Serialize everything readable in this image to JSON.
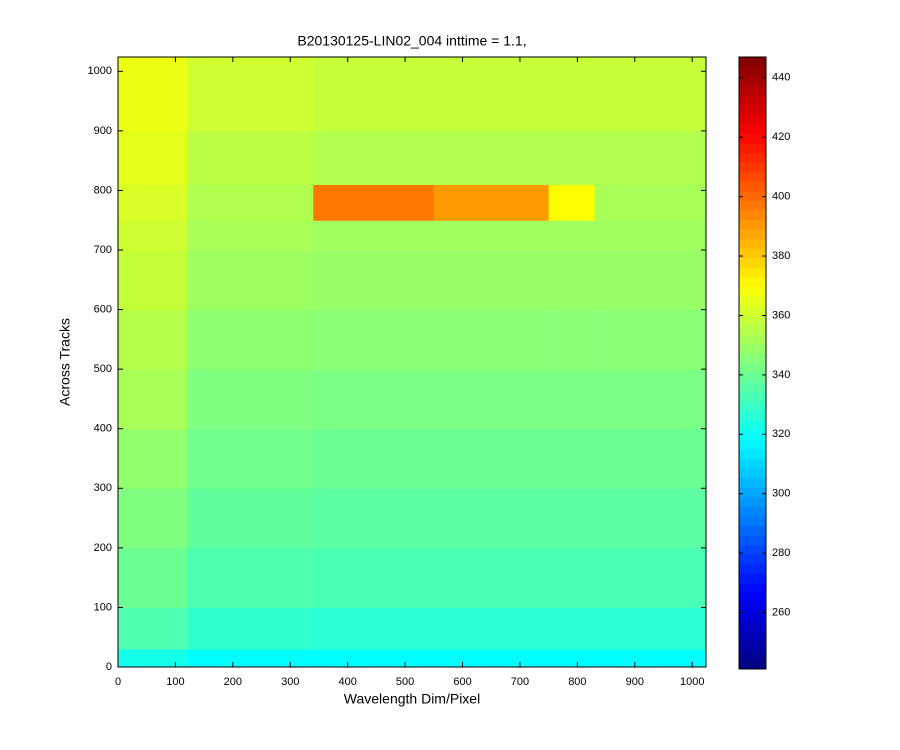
{
  "chart_data": {
    "type": "heatmap",
    "title": "B20130125-LIN02_004 inttime = 1.1,",
    "xlabel": "Wavelength Dim/Pixel",
    "ylabel": "Across Tracks",
    "colormap": "jet",
    "x_edges": [
      0,
      120,
      340,
      550,
      750,
      830,
      1024
    ],
    "y_edges": [
      0,
      30,
      100,
      200,
      300,
      400,
      500,
      600,
      700,
      750,
      810,
      900,
      1024
    ],
    "values": [
      [
        322,
        318,
        318,
        318,
        318,
        318
      ],
      [
        334,
        328,
        327,
        327,
        327,
        327
      ],
      [
        340,
        334,
        333,
        333,
        333,
        333
      ],
      [
        344,
        338,
        337,
        337,
        337,
        337
      ],
      [
        348,
        341,
        340,
        340,
        340,
        340
      ],
      [
        352,
        344,
        343,
        343,
        343,
        343
      ],
      [
        355,
        347,
        346,
        346,
        346,
        346
      ],
      [
        358,
        350,
        349,
        349,
        349,
        349
      ],
      [
        360,
        352,
        351,
        351,
        351,
        351
      ],
      [
        362,
        354,
        397,
        390,
        370,
        352
      ],
      [
        364,
        356,
        354,
        354,
        354,
        354
      ],
      [
        366,
        360,
        358,
        358,
        358,
        358
      ]
    ],
    "xlim": [
      0,
      1024
    ],
    "ylim": [
      0,
      1024
    ],
    "xticks": [
      0,
      100,
      200,
      300,
      400,
      500,
      600,
      700,
      800,
      900,
      1000
    ],
    "yticks": [
      0,
      100,
      200,
      300,
      400,
      500,
      600,
      700,
      800,
      900,
      1000
    ],
    "clim": [
      241,
      447
    ],
    "cticks": [
      260,
      280,
      300,
      320,
      340,
      360,
      380,
      400,
      420,
      440
    ]
  }
}
